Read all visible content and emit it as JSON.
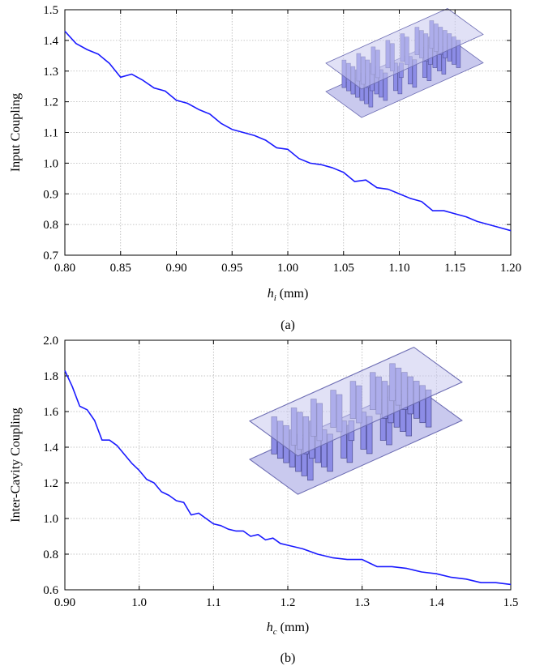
{
  "colors": {
    "line": "#1a1aff",
    "grid": "#b4b4b4",
    "axis": "#000000",
    "inset_face": "#8c8ce6",
    "inset_top": "#c9c9ee"
  },
  "chart_data": [
    {
      "type": "line",
      "panel_label": "(a)",
      "ylabel": "Input Coupling",
      "xlabel": {
        "var": "h",
        "sub": "i",
        "unit": "(mm)"
      },
      "xlim": [
        0.8,
        1.2
      ],
      "ylim": [
        0.7,
        1.5
      ],
      "grid": true,
      "xticks": [
        "0.80",
        "0.85",
        "0.90",
        "0.95",
        "1.00",
        "1.05",
        "1.10",
        "1.15",
        "1.20"
      ],
      "yticks": [
        "0.7",
        "0.8",
        "0.9",
        "1.0",
        "1.1",
        "1.2",
        "1.3",
        "1.4",
        "1.5"
      ],
      "inset_icon": "3d-filter-model",
      "series": [
        {
          "x": [
            0.8,
            0.81,
            0.82,
            0.83,
            0.84,
            0.85,
            0.86,
            0.87,
            0.88,
            0.89,
            0.9,
            0.91,
            0.92,
            0.93,
            0.94,
            0.95,
            0.96,
            0.97,
            0.98,
            0.99,
            1.0,
            1.01,
            1.02,
            1.03,
            1.04,
            1.05,
            1.06,
            1.07,
            1.08,
            1.09,
            1.1,
            1.11,
            1.12,
            1.13,
            1.14,
            1.15,
            1.16,
            1.17,
            1.18,
            1.19,
            1.2
          ],
          "y": [
            1.43,
            1.39,
            1.37,
            1.355,
            1.325,
            1.28,
            1.29,
            1.27,
            1.245,
            1.235,
            1.205,
            1.195,
            1.175,
            1.16,
            1.13,
            1.11,
            1.1,
            1.09,
            1.075,
            1.05,
            1.045,
            1.015,
            1.0,
            0.995,
            0.985,
            0.97,
            0.94,
            0.945,
            0.92,
            0.915,
            0.9,
            0.885,
            0.875,
            0.845,
            0.845,
            0.835,
            0.825,
            0.81,
            0.8,
            0.79,
            0.78
          ]
        }
      ]
    },
    {
      "type": "line",
      "panel_label": "(b)",
      "ylabel": "Inter-Cavity Coupling",
      "xlabel": {
        "var": "h",
        "sub": "c",
        "unit": "(mm)"
      },
      "xlim": [
        0.9,
        1.5
      ],
      "ylim": [
        0.6,
        2.0
      ],
      "grid": true,
      "xticks": [
        "0.90",
        "1.0",
        "1.1",
        "1.2",
        "1.3",
        "1.4",
        "1.5"
      ],
      "yticks": [
        "0.6",
        "0.8",
        "1.0",
        "1.2",
        "1.4",
        "1.6",
        "1.8",
        "2.0"
      ],
      "inset_icon": "3d-filter-model",
      "series": [
        {
          "x": [
            0.9,
            0.91,
            0.92,
            0.93,
            0.94,
            0.95,
            0.96,
            0.97,
            0.98,
            0.99,
            1.0,
            1.01,
            1.02,
            1.03,
            1.04,
            1.05,
            1.06,
            1.07,
            1.08,
            1.09,
            1.1,
            1.11,
            1.12,
            1.13,
            1.14,
            1.15,
            1.16,
            1.17,
            1.18,
            1.19,
            1.2,
            1.22,
            1.24,
            1.26,
            1.28,
            1.3,
            1.32,
            1.34,
            1.36,
            1.38,
            1.4,
            1.42,
            1.44,
            1.46,
            1.48,
            1.5
          ],
          "y": [
            1.83,
            1.74,
            1.63,
            1.61,
            1.55,
            1.44,
            1.44,
            1.41,
            1.36,
            1.31,
            1.27,
            1.22,
            1.2,
            1.15,
            1.13,
            1.1,
            1.09,
            1.02,
            1.03,
            1.0,
            0.97,
            0.96,
            0.94,
            0.93,
            0.93,
            0.9,
            0.91,
            0.88,
            0.89,
            0.86,
            0.85,
            0.83,
            0.8,
            0.78,
            0.77,
            0.77,
            0.73,
            0.73,
            0.72,
            0.7,
            0.69,
            0.67,
            0.66,
            0.64,
            0.64,
            0.63
          ]
        }
      ]
    }
  ]
}
